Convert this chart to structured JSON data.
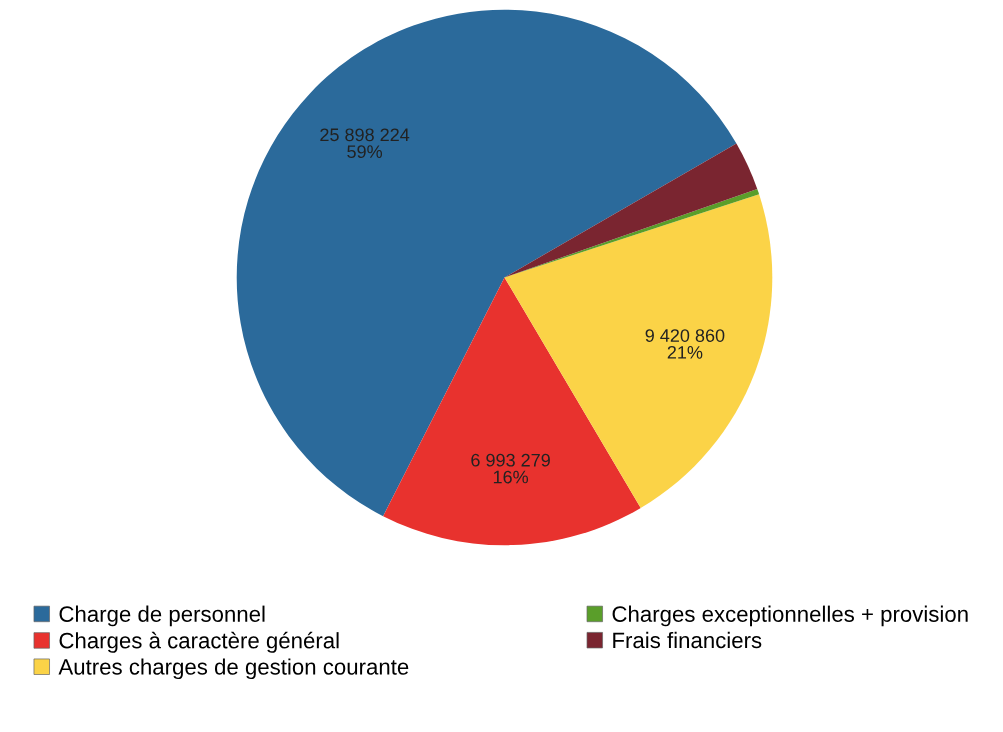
{
  "chart_data": {
    "type": "pie",
    "categories": [
      "Charge de personnel",
      "Charges à caractère général",
      "Autres charges de gestion courante",
      "Charges exceptionnelles + provision",
      "Frais financiers"
    ],
    "values": [
      25898224,
      6993279,
      9420860,
      150000,
      1300000
    ],
    "colors": [
      "#2b6a9b",
      "#e8322e",
      "#fbd347",
      "#5a9e2a",
      "#7a2530"
    ],
    "value_labels": [
      "25 898 224\n59%",
      "6 993 279\n16%",
      "9 420 860\n21%",
      null,
      null
    ],
    "legend": "bottom"
  }
}
